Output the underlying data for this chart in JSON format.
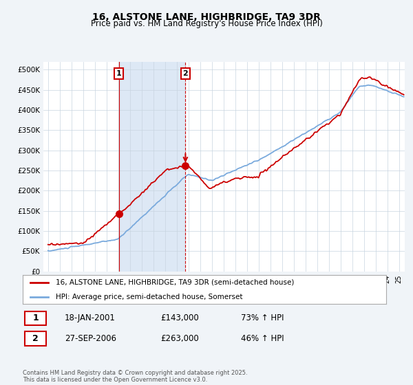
{
  "title": "16, ALSTONE LANE, HIGHBRIDGE, TA9 3DR",
  "subtitle": "Price paid vs. HM Land Registry's House Price Index (HPI)",
  "legend_line1": "16, ALSTONE LANE, HIGHBRIDGE, TA9 3DR (semi-detached house)",
  "legend_line2": "HPI: Average price, semi-detached house, Somerset",
  "transaction1_date": "18-JAN-2001",
  "transaction1_price": "£143,000",
  "transaction1_hpi": "73% ↑ HPI",
  "transaction1_year": 2001.05,
  "transaction1_value": 143000,
  "transaction2_date": "27-SEP-2006",
  "transaction2_price": "£263,000",
  "transaction2_hpi": "46% ↑ HPI",
  "transaction2_year": 2006.75,
  "transaction2_value": 263000,
  "red_color": "#cc0000",
  "blue_color": "#7aaadd",
  "shade_color": "#dde8f5",
  "background_color": "#f0f4f8",
  "plot_bg_color": "#ffffff",
  "footer": "Contains HM Land Registry data © Crown copyright and database right 2025.\nThis data is licensed under the Open Government Licence v3.0.",
  "ylim": [
    0,
    520000
  ],
  "yticks": [
    0,
    50000,
    100000,
    150000,
    200000,
    250000,
    300000,
    350000,
    400000,
    450000,
    500000
  ],
  "ytick_labels": [
    "£0",
    "£50K",
    "£100K",
    "£150K",
    "£200K",
    "£250K",
    "£300K",
    "£350K",
    "£400K",
    "£450K",
    "£500K"
  ]
}
